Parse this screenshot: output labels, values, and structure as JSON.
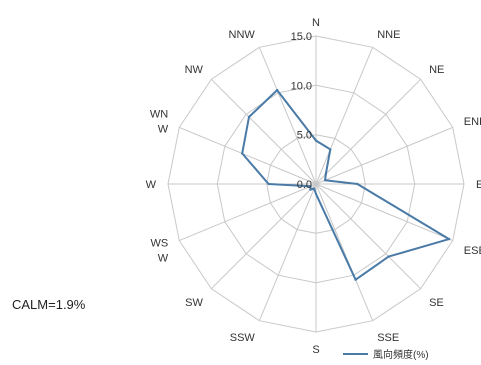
{
  "chart_data": {
    "type": "radar",
    "directions": [
      {
        "key": "N",
        "lines": [
          "N"
        ]
      },
      {
        "key": "NNE",
        "lines": [
          "NNE"
        ]
      },
      {
        "key": "NE",
        "lines": [
          "NE"
        ]
      },
      {
        "key": "ENE",
        "lines": [
          "ENE"
        ]
      },
      {
        "key": "E",
        "lines": [
          "E"
        ]
      },
      {
        "key": "ESE",
        "lines": [
          "ESE"
        ]
      },
      {
        "key": "SE",
        "lines": [
          "SE"
        ]
      },
      {
        "key": "SSE",
        "lines": [
          "SSE"
        ]
      },
      {
        "key": "S",
        "lines": [
          "S"
        ]
      },
      {
        "key": "SSW",
        "lines": [
          "SSW"
        ]
      },
      {
        "key": "SW",
        "lines": [
          "SW"
        ]
      },
      {
        "key": "WS/W",
        "lines": [
          "WS",
          "W"
        ]
      },
      {
        "key": "W",
        "lines": [
          "W"
        ]
      },
      {
        "key": "WN/W",
        "lines": [
          "WN",
          "W"
        ]
      },
      {
        "key": "NW",
        "lines": [
          "NW"
        ]
      },
      {
        "key": "NNW",
        "lines": [
          "NNW"
        ]
      }
    ],
    "rings": [
      {
        "value": 0,
        "label": "0.0"
      },
      {
        "value": 5,
        "label": "5.0"
      },
      {
        "value": 10,
        "label": "10.0"
      },
      {
        "value": 15,
        "label": "15.0"
      }
    ],
    "rlim": [
      0,
      15
    ],
    "series": [
      {
        "name": "風向頻度(%)",
        "color": "#4a7aa6",
        "values": [
          4.4,
          3.8,
          1.4,
          1.0,
          4.2,
          14.6,
          10.4,
          10.5,
          1.0,
          0.5,
          0.8,
          0.6,
          4.8,
          8.1,
          9.6,
          10.3
        ]
      }
    ],
    "legend_position": "bottom-right",
    "grid": true
  },
  "annotation": {
    "calm": "CALM=1.9%"
  }
}
